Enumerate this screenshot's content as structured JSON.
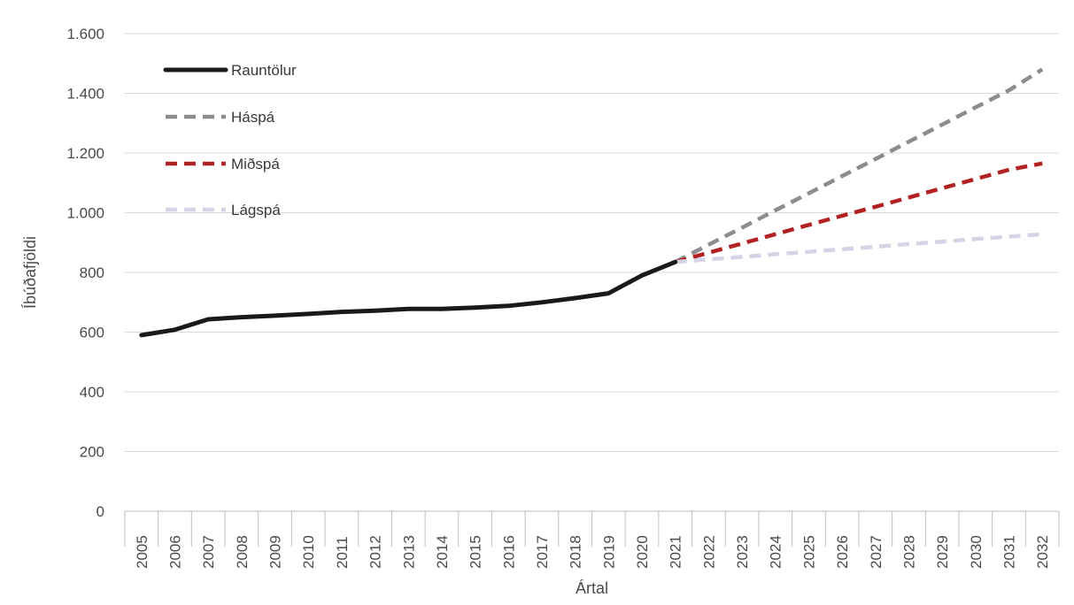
{
  "chart_data": {
    "type": "line",
    "xlabel": "Ártal",
    "ylabel": "Íbúðafjöldi",
    "ylim": [
      0,
      1600
    ],
    "yticks": [
      0,
      200,
      400,
      600,
      800,
      1000,
      1200,
      1400,
      1600
    ],
    "ytick_labels": [
      "0",
      "200",
      "400",
      "600",
      "800",
      "1.000",
      "1.200",
      "1.400",
      "1.600"
    ],
    "categories": [
      "2005",
      "2006",
      "2007",
      "2008",
      "2009",
      "2010",
      "2011",
      "2012",
      "2013",
      "2014",
      "2015",
      "2016",
      "2017",
      "2018",
      "2019",
      "2020",
      "2021",
      "2022",
      "2023",
      "2024",
      "2025",
      "2026",
      "2027",
      "2028",
      "2029",
      "2030",
      "2031",
      "2032"
    ],
    "grid": "horizontal",
    "legend_position": "top-left",
    "series": [
      {
        "name": "Rauntölur",
        "color": "#1a1a1a",
        "dash": "solid",
        "values": [
          590,
          608,
          643,
          650,
          655,
          661,
          668,
          672,
          678,
          678,
          682,
          688,
          700,
          714,
          730,
          790,
          835,
          null,
          null,
          null,
          null,
          null,
          null,
          null,
          null,
          null,
          null,
          null
        ]
      },
      {
        "name": "Háspá",
        "color": "#8c8c8c",
        "dash": "dashed",
        "values": [
          null,
          null,
          null,
          null,
          null,
          null,
          null,
          null,
          null,
          null,
          null,
          null,
          null,
          null,
          null,
          null,
          835,
          893,
          950,
          1008,
          1065,
          1123,
          1180,
          1238,
          1295,
          1353,
          1410,
          1480
        ]
      },
      {
        "name": "Miðspá",
        "color": "#b22222",
        "dash": "dashed",
        "values": [
          null,
          null,
          null,
          null,
          null,
          null,
          null,
          null,
          null,
          null,
          null,
          null,
          null,
          null,
          null,
          null,
          835,
          866,
          897,
          928,
          959,
          990,
          1020,
          1051,
          1082,
          1113,
          1144,
          1165
        ]
      },
      {
        "name": "Lágspá",
        "color": "#d4d4e6",
        "dash": "dashed",
        "values": [
          null,
          null,
          null,
          null,
          null,
          null,
          null,
          null,
          null,
          null,
          null,
          null,
          null,
          null,
          null,
          null,
          835,
          844,
          852,
          861,
          869,
          878,
          886,
          895,
          903,
          912,
          920,
          928
        ]
      }
    ]
  }
}
